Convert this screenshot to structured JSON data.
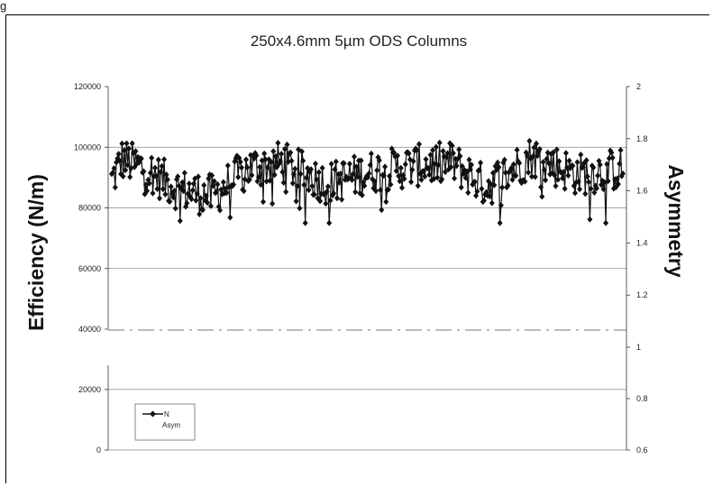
{
  "figure_label": "g",
  "chart_data": {
    "type": "line",
    "title": "250x4.6mm 5µm ODS Columns",
    "ylabel_left": "Efficiency (N/m)",
    "ylabel_right": "Asymmetry",
    "yticks_left": [
      "120000",
      "100000",
      "80000",
      "60000",
      "40000",
      "20000",
      "0"
    ],
    "yticks_right": [
      "2",
      "1.8",
      "1.6",
      "1.4",
      "1.2",
      "1",
      "0.8",
      "0.6"
    ],
    "ylim_left": [
      0,
      120000
    ],
    "ylim_right": [
      0.6,
      2
    ],
    "axis_break": [
      30000,
      40000
    ],
    "grid": true,
    "legend_position": "bottom-left",
    "legend": [
      "N",
      "Asym"
    ],
    "series": [
      {
        "name": "N",
        "axis": "left",
        "marker": "diamond",
        "mean_trend": [
          {
            "x": 1,
            "y": 89000
          },
          {
            "x": 10,
            "y": 96000
          },
          {
            "x": 30,
            "y": 93000
          },
          {
            "x": 60,
            "y": 86000
          },
          {
            "x": 90,
            "y": 84000
          },
          {
            "x": 120,
            "y": 93000
          },
          {
            "x": 150,
            "y": 95000
          },
          {
            "x": 190,
            "y": 88000
          },
          {
            "x": 230,
            "y": 92000
          },
          {
            "x": 270,
            "y": 94000
          },
          {
            "x": 300,
            "y": 95000
          },
          {
            "x": 330,
            "y": 87000
          },
          {
            "x": 370,
            "y": 97000
          },
          {
            "x": 410,
            "y": 91000
          },
          {
            "x": 450,
            "y": 93000
          }
        ],
        "min": 75000,
        "max": 105000
      },
      {
        "name": "Asym",
        "axis": "right",
        "style": "dash-dot",
        "values_near": 1.06
      }
    ]
  }
}
